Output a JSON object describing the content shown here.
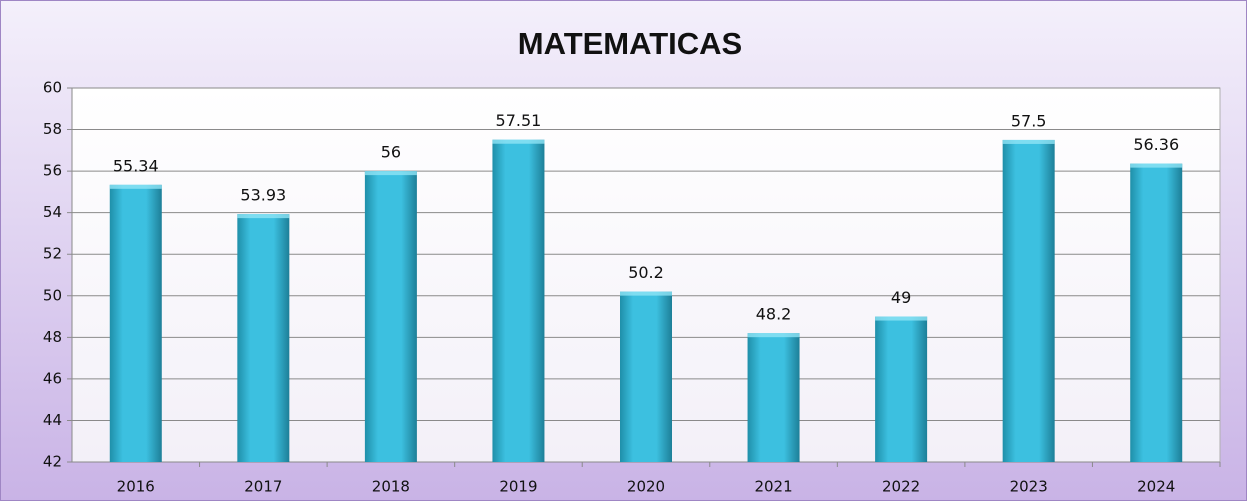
{
  "chart_data": {
    "type": "bar",
    "title": "MATEMATICAS",
    "categories": [
      "2016",
      "2017",
      "2018",
      "2019",
      "2020",
      "2021",
      "2022",
      "2023",
      "2024"
    ],
    "values": [
      55.34,
      53.93,
      56,
      57.51,
      50.2,
      48.2,
      49,
      57.5,
      56.36
    ],
    "color": "#3bbfe0",
    "ylim": [
      42,
      60
    ],
    "yticks": [
      42,
      44,
      46,
      48,
      50,
      52,
      54,
      56,
      58,
      60
    ],
    "grid": true
  }
}
